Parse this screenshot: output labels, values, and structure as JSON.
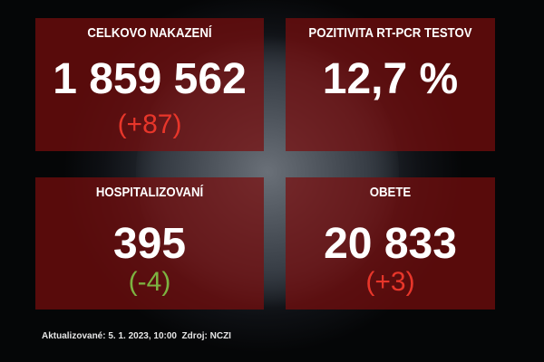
{
  "panels": [
    {
      "title": "CELKOVO NAKAZENÍ",
      "value": "1 859 562",
      "delta": "(+87)",
      "delta_color": "#e8362a"
    },
    {
      "title": "POZITIVITA RT-PCR TESTOV",
      "value": "12,7 %"
    },
    {
      "title": "HOSPITALIZOVANÍ",
      "value": "395",
      "delta": "(-4)",
      "delta_color": "#7cb341"
    },
    {
      "title": "OBETE",
      "value": "20 833",
      "delta": "(+3)",
      "delta_color": "#e8362a"
    }
  ],
  "footer": "Aktualizované: 5. 1. 2023, 10:00  Zdroj: NCZI"
}
